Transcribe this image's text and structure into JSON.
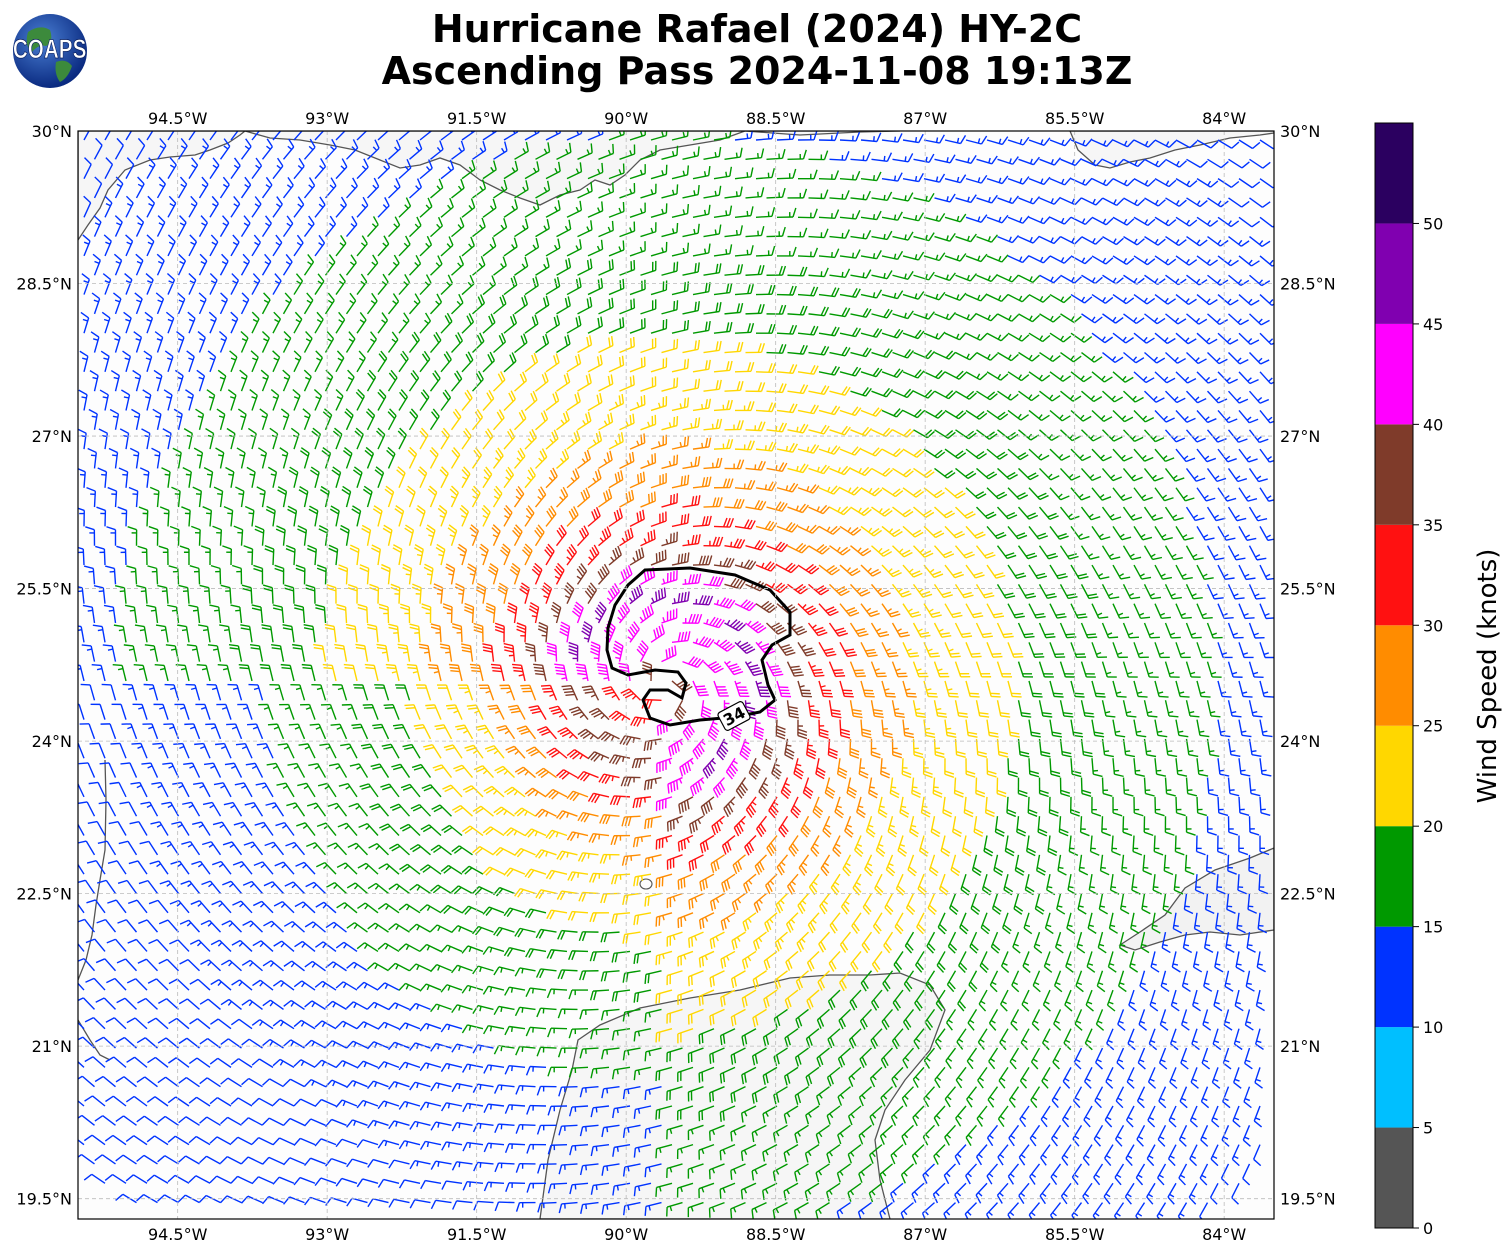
{
  "title_line1": "Hurricane Rafael (2024) HY-2C",
  "title_line2": "Ascending Pass 2024-11-08 19:13Z",
  "logo_text": "COAPS",
  "map": {
    "lon_range": [
      -95.5,
      -83.5
    ],
    "lat_range": [
      19.3,
      30.0
    ],
    "lon_ticks": [
      {
        "value": -94.5,
        "label": "94.5°W"
      },
      {
        "value": -93.0,
        "label": "93°W"
      },
      {
        "value": -91.5,
        "label": "91.5°W"
      },
      {
        "value": -90.0,
        "label": "90°W"
      },
      {
        "value": -88.5,
        "label": "88.5°W"
      },
      {
        "value": -87.0,
        "label": "87°W"
      },
      {
        "value": -85.5,
        "label": "85.5°W"
      },
      {
        "value": -84.0,
        "label": "84°W"
      }
    ],
    "lat_ticks": [
      {
        "value": 30.0,
        "label": "30°N"
      },
      {
        "value": 28.5,
        "label": "28.5°N"
      },
      {
        "value": 27.0,
        "label": "27°N"
      },
      {
        "value": 25.5,
        "label": "25.5°N"
      },
      {
        "value": 24.0,
        "label": "24°N"
      },
      {
        "value": 22.5,
        "label": "22.5°N"
      },
      {
        "value": 21.0,
        "label": "21°N"
      },
      {
        "value": 19.5,
        "label": "19.5°N"
      }
    ],
    "grid": true,
    "storm_center": {
      "lon": -89.6,
      "lat": 24.55
    },
    "contour_label": "34"
  },
  "colorbar": {
    "label": "Wind Speed (knots)",
    "levels": [
      0,
      5,
      10,
      15,
      20,
      25,
      30,
      35,
      40,
      45,
      50
    ],
    "tick_labels": [
      "0",
      "5",
      "10",
      "15",
      "20",
      "25",
      "30",
      "35",
      "40",
      "45",
      "50"
    ],
    "colors": [
      "#555555",
      "#00bfff",
      "#0033ff",
      "#009900",
      "#ffd700",
      "#ff8c00",
      "#ff1111",
      "#7f3b2a",
      "#ff00ff",
      "#8000b0",
      "#2b0060"
    ]
  }
}
